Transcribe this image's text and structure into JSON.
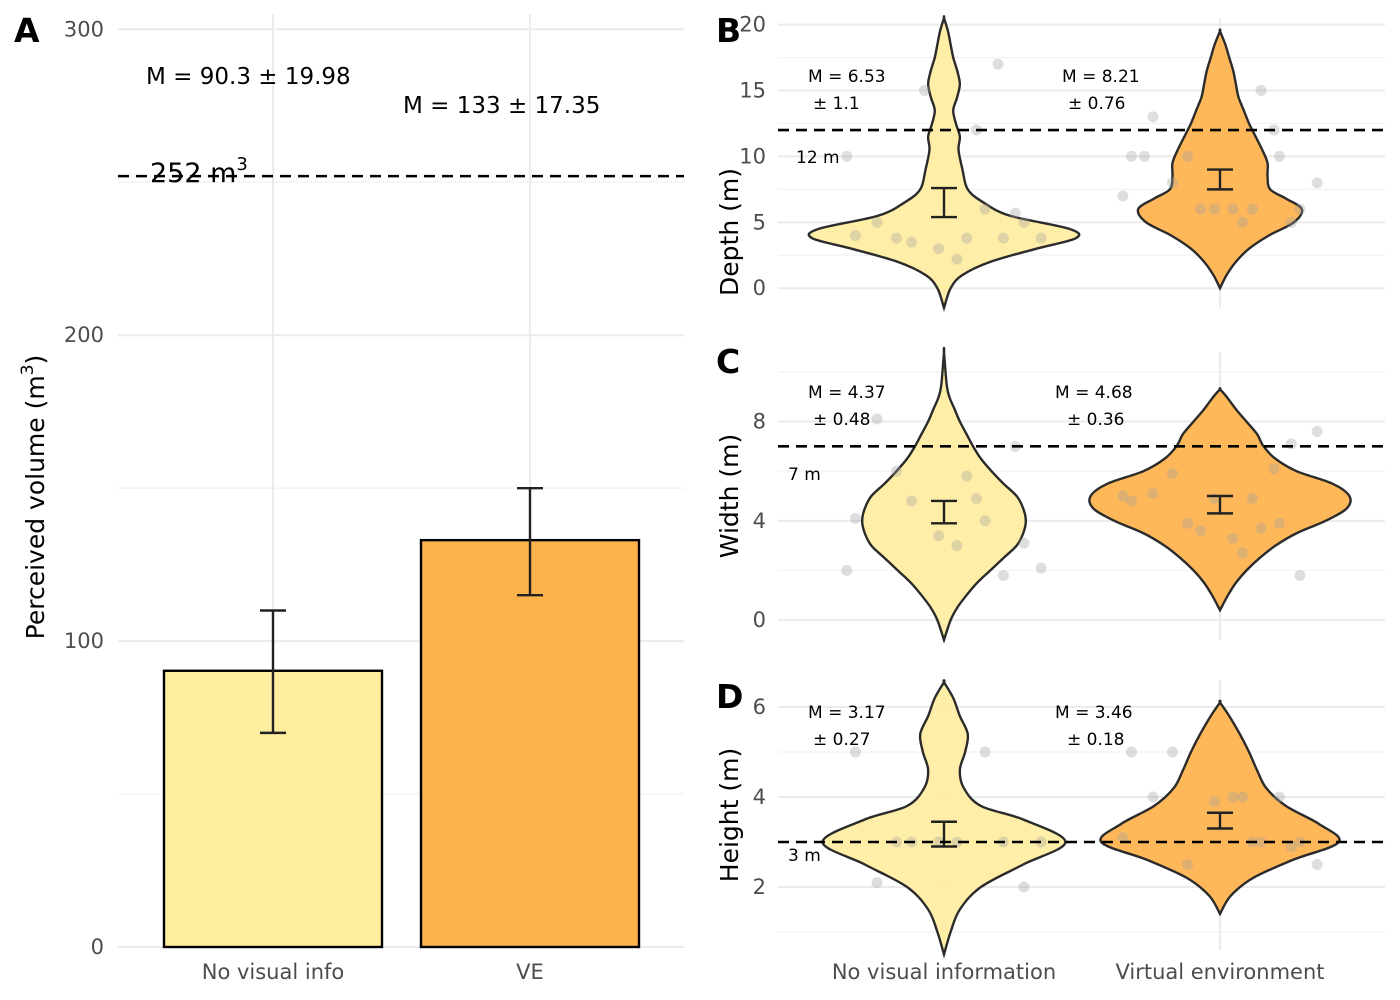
{
  "colors": {
    "no_visual": "#ffeda0",
    "ve": "#feb24c",
    "outline": "#2b2b2b",
    "point": "#a0a0a0"
  },
  "chart_data": [
    {
      "panel": "A",
      "type": "bar",
      "categories": [
        "No visual info",
        "VE"
      ],
      "values": [
        90.3,
        133
      ],
      "error_bars": [
        [
          70,
          110
        ],
        [
          115,
          150
        ]
      ],
      "ylabel": "Perceived volume (m",
      "ylabel_sup": "3",
      "ylabel_close": ")",
      "ylim": [
        0,
        305
      ],
      "yticks": [
        0,
        100,
        200,
        300
      ],
      "annotations": [
        "M = 90.3 ± 19.98",
        "M = 133 ± 17.35"
      ],
      "reference": {
        "value": 252,
        "label": "252 m",
        "label_sup": "3"
      }
    },
    {
      "panel": "B",
      "type": "violin",
      "categories": [
        "No visual information",
        "Virtual environment"
      ],
      "ylabel": "Depth (m)",
      "ylim": [
        -1.5,
        20.5
      ],
      "yticks": [
        0,
        5,
        10,
        15,
        20
      ],
      "means": [
        6.53,
        8.21
      ],
      "ci": [
        [
          5.4,
          7.6
        ],
        [
          7.5,
          9.0
        ]
      ],
      "annotations": [
        [
          "M = 6.53",
          "± 1.1"
        ],
        [
          "M = 8.21",
          "± 0.76"
        ]
      ],
      "reference": {
        "value": 12,
        "label": "12 m"
      },
      "points": [
        [
          4,
          3.8,
          3.5,
          2.2,
          5,
          5,
          6,
          3,
          3.8,
          3.8,
          3.8,
          5.7,
          10,
          12,
          15,
          17
        ],
        [
          10,
          10,
          10,
          6,
          6,
          13,
          15,
          6,
          8,
          8,
          5,
          5,
          7,
          6,
          6,
          12,
          10
        ]
      ],
      "violin_shapes": [
        [
          [
            -1.5,
            0
          ],
          [
            0,
            0.05
          ],
          [
            1,
            0.14
          ],
          [
            2,
            0.35
          ],
          [
            3,
            0.7
          ],
          [
            3.8,
            1.0
          ],
          [
            4.5,
            0.95
          ],
          [
            5.5,
            0.5
          ],
          [
            6.5,
            0.3
          ],
          [
            7.5,
            0.18
          ],
          [
            9,
            0.14
          ],
          [
            10.5,
            0.11
          ],
          [
            11.5,
            0.12
          ],
          [
            12.5,
            0.09
          ],
          [
            13.5,
            0.07
          ],
          [
            14.5,
            0.1
          ],
          [
            15.5,
            0.12
          ],
          [
            16.5,
            0.1
          ],
          [
            17.5,
            0.07
          ],
          [
            18.5,
            0.05
          ],
          [
            19.5,
            0.03
          ],
          [
            20.5,
            0
          ]
        ],
        [
          [
            0,
            0
          ],
          [
            1,
            0.05
          ],
          [
            2,
            0.12
          ],
          [
            3,
            0.22
          ],
          [
            4,
            0.37
          ],
          [
            5,
            0.56
          ],
          [
            6,
            0.62
          ],
          [
            6.8,
            0.5
          ],
          [
            7.5,
            0.38
          ],
          [
            8.5,
            0.36
          ],
          [
            9.5,
            0.36
          ],
          [
            10.5,
            0.32
          ],
          [
            11.5,
            0.27
          ],
          [
            12.5,
            0.22
          ],
          [
            13.5,
            0.18
          ],
          [
            14.5,
            0.14
          ],
          [
            15.5,
            0.12
          ],
          [
            16.5,
            0.1
          ],
          [
            17.5,
            0.07
          ],
          [
            18.5,
            0.04
          ],
          [
            19.5,
            0
          ]
        ]
      ]
    },
    {
      "panel": "C",
      "type": "violin",
      "categories": [
        "No visual information",
        "Virtual environment"
      ],
      "ylabel": "Width (m)",
      "ylim": [
        -0.8,
        10.8
      ],
      "yticks": [
        0,
        4,
        8
      ],
      "means": [
        4.37,
        4.68
      ],
      "ci": [
        [
          3.9,
          4.8
        ],
        [
          4.3,
          5.0
        ]
      ],
      "annotations": [
        [
          "M = 4.37",
          "± 0.48"
        ],
        [
          "M = 4.68",
          "± 0.36"
        ]
      ],
      "reference": {
        "value": 7,
        "label": "7 m"
      },
      "points": [
        [
          4.1,
          1.8,
          4.8,
          3.0,
          3.1,
          8.1,
          4.0,
          3.4,
          2.1,
          6.0,
          5.8,
          7.0,
          2.0,
          4.9
        ],
        [
          4.8,
          3.9,
          3.9,
          3.3,
          1.8,
          5.1,
          3.7,
          4.9,
          7.6,
          5.9,
          2.7,
          7.1,
          5.0,
          4.9,
          3.6,
          6.1
        ]
      ],
      "violin_shapes": [
        [
          [
            -0.8,
            0
          ],
          [
            0,
            0.05
          ],
          [
            0.5,
            0.1
          ],
          [
            1,
            0.17
          ],
          [
            1.5,
            0.25
          ],
          [
            2,
            0.35
          ],
          [
            2.5,
            0.45
          ],
          [
            3,
            0.55
          ],
          [
            3.5,
            0.6
          ],
          [
            4,
            0.62
          ],
          [
            4.5,
            0.6
          ],
          [
            5,
            0.55
          ],
          [
            5.5,
            0.45
          ],
          [
            6,
            0.36
          ],
          [
            6.5,
            0.28
          ],
          [
            7,
            0.22
          ],
          [
            7.5,
            0.17
          ],
          [
            8,
            0.12
          ],
          [
            8.5,
            0.08
          ],
          [
            9,
            0.04
          ],
          [
            9.5,
            0.02
          ],
          [
            10.8,
            0
          ]
        ],
        [
          [
            0.4,
            0
          ],
          [
            1,
            0.06
          ],
          [
            1.5,
            0.12
          ],
          [
            2,
            0.2
          ],
          [
            2.5,
            0.3
          ],
          [
            3,
            0.42
          ],
          [
            3.5,
            0.58
          ],
          [
            4,
            0.8
          ],
          [
            4.5,
            0.96
          ],
          [
            5,
            0.98
          ],
          [
            5.5,
            0.85
          ],
          [
            6,
            0.58
          ],
          [
            6.5,
            0.42
          ],
          [
            7,
            0.33
          ],
          [
            7.5,
            0.28
          ],
          [
            8,
            0.2
          ],
          [
            8.5,
            0.12
          ],
          [
            9,
            0.05
          ],
          [
            9.3,
            0
          ]
        ]
      ]
    },
    {
      "panel": "D",
      "type": "violin",
      "categories": [
        "No visual information",
        "Virtual environment"
      ],
      "ylabel": "Height (m)",
      "ylim": [
        0.6,
        6.6
      ],
      "yticks": [
        2,
        4,
        6
      ],
      "means": [
        3.17,
        3.46
      ],
      "ci": [
        [
          2.9,
          3.45
        ],
        [
          3.3,
          3.65
        ]
      ],
      "annotations": [
        [
          "M = 3.17",
          "± 0.27"
        ],
        [
          "M = 3.46",
          "± 0.18"
        ]
      ],
      "reference": {
        "value": 3,
        "label": "3 m"
      },
      "points": [
        [
          5.0,
          3.0,
          3.0,
          3.0,
          2.0,
          2.1,
          5.0,
          3.0,
          3.0,
          3.0
        ],
        [
          5.0,
          4.0,
          2.5,
          4.0,
          3.0,
          4.0,
          3.0,
          3.9,
          2.5,
          5.0,
          4.0,
          2.9,
          3.1,
          3.0
        ]
      ],
      "violin_shapes": [
        [
          [
            0.5,
            0
          ],
          [
            1,
            0.05
          ],
          [
            1.5,
            0.12
          ],
          [
            2,
            0.28
          ],
          [
            2.5,
            0.6
          ],
          [
            3,
            0.92
          ],
          [
            3.5,
            0.6
          ],
          [
            3.8,
            0.28
          ],
          [
            4.2,
            0.15
          ],
          [
            4.6,
            0.12
          ],
          [
            5,
            0.16
          ],
          [
            5.4,
            0.18
          ],
          [
            5.8,
            0.12
          ],
          [
            6.2,
            0.07
          ],
          [
            6.55,
            0
          ]
        ],
        [
          [
            1.4,
            0
          ],
          [
            1.8,
            0.08
          ],
          [
            2.2,
            0.25
          ],
          [
            2.6,
            0.55
          ],
          [
            3,
            0.9
          ],
          [
            3.4,
            0.75
          ],
          [
            3.8,
            0.5
          ],
          [
            4.2,
            0.35
          ],
          [
            4.6,
            0.28
          ],
          [
            5,
            0.22
          ],
          [
            5.4,
            0.15
          ],
          [
            5.8,
            0.07
          ],
          [
            6.1,
            0
          ]
        ]
      ]
    }
  ]
}
